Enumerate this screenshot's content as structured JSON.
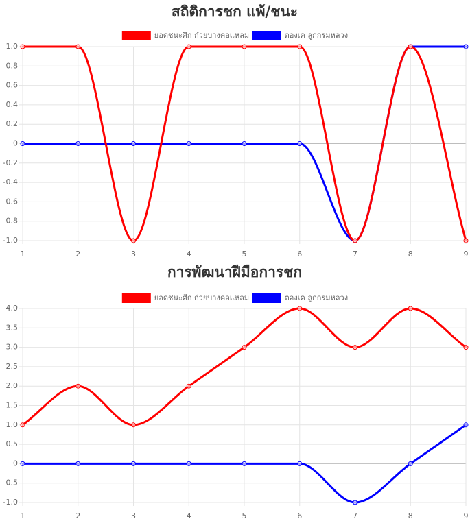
{
  "colors": {
    "series_a": "#ff0000",
    "series_b": "#0000ff",
    "grid": "#e4e4e4",
    "zero": "#bdbdbd",
    "tick": "#666666",
    "title": "#333333"
  },
  "chart_data": [
    {
      "type": "line",
      "title": "สถิติการชก แพ้/ชนะ",
      "x": [
        1,
        2,
        3,
        4,
        5,
        6,
        7,
        8,
        9
      ],
      "series": [
        {
          "name": "ยอดชนะศึก ก๋วยบางคอแหลม",
          "color": "#ff0000",
          "values": [
            1,
            1,
            -1,
            1,
            1,
            1,
            -1,
            1,
            -1
          ]
        },
        {
          "name": "ตองเค ลูกกรมหลวง",
          "color": "#0000ff",
          "values": [
            0,
            0,
            0,
            0,
            0,
            0,
            -1,
            1,
            1
          ]
        }
      ],
      "ylim": [
        -1,
        1
      ],
      "yticks": [
        "1.0",
        "0.8",
        "0.6",
        "0.4",
        "0.2",
        "0",
        "-0.2",
        "-0.4",
        "-0.6",
        "-0.8",
        "-1.0"
      ],
      "xticks": [
        "1",
        "2",
        "3",
        "4",
        "5",
        "6",
        "7",
        "8",
        "9"
      ],
      "grid": true,
      "legend": "top-center"
    },
    {
      "type": "line",
      "title": "การพัฒนาฝีมือการชก",
      "x": [
        1,
        2,
        3,
        4,
        5,
        6,
        7,
        8,
        9
      ],
      "series": [
        {
          "name": "ยอดชนะศึก ก๋วยบางคอแหลม",
          "color": "#ff0000",
          "values": [
            1,
            2,
            1,
            2,
            3,
            4,
            3,
            4,
            3
          ]
        },
        {
          "name": "ตองเค ลูกกรมหลวง",
          "color": "#0000ff",
          "values": [
            0,
            0,
            0,
            0,
            0,
            0,
            -1,
            0,
            1
          ]
        }
      ],
      "ylim": [
        -1,
        4
      ],
      "yticks": [
        "4.0",
        "3.5",
        "3.0",
        "2.5",
        "2.0",
        "1.5",
        "1.0",
        "0.5",
        "0",
        "-0.5",
        "-1.0"
      ],
      "xticks": [
        "1",
        "2",
        "3",
        "4",
        "5",
        "6",
        "7",
        "8",
        "9"
      ],
      "grid": true,
      "legend": "top-center"
    }
  ]
}
